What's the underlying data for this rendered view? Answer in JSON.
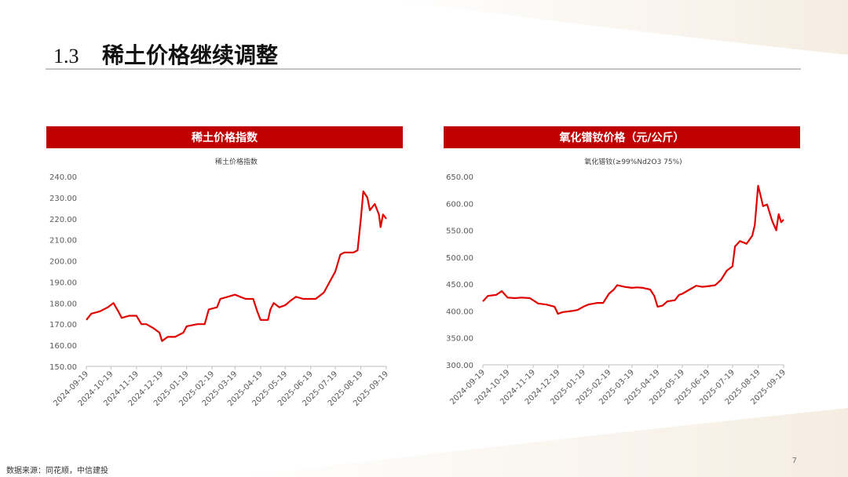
{
  "slide": {
    "section": "1.3",
    "title": "稀土价格继续调整",
    "source": "数据来源：同花顺，中信建投",
    "page": "7"
  },
  "chart_data": [
    {
      "type": "line",
      "header": "稀土价格指数",
      "title": "稀土价格指数",
      "color": "#e00000",
      "x": [
        "2024-09-19",
        "2024-09-25",
        "2024-10-05",
        "2024-10-15",
        "2024-10-22",
        "2024-10-28",
        "2024-11-01",
        "2024-11-10",
        "2024-11-19",
        "2024-11-25",
        "2024-12-01",
        "2024-12-10",
        "2024-12-17",
        "2024-12-20",
        "2024-12-27",
        "2025-01-05",
        "2025-01-15",
        "2025-01-19",
        "2025-02-01",
        "2025-02-10",
        "2025-02-15",
        "2025-02-25",
        "2025-03-01",
        "2025-03-10",
        "2025-03-19",
        "2025-03-25",
        "2025-04-01",
        "2025-04-10",
        "2025-04-15",
        "2025-04-19",
        "2025-04-28",
        "2025-05-01",
        "2025-05-05",
        "2025-05-12",
        "2025-05-19",
        "2025-05-25",
        "2025-06-01",
        "2025-06-10",
        "2025-06-19",
        "2025-06-25",
        "2025-07-05",
        "2025-07-12",
        "2025-07-19",
        "2025-07-25",
        "2025-07-30",
        "2025-08-10",
        "2025-08-15",
        "2025-08-19",
        "2025-08-22",
        "2025-08-27",
        "2025-08-30",
        "2025-09-05",
        "2025-09-10",
        "2025-09-12",
        "2025-09-15",
        "2025-09-19"
      ],
      "values": [
        172,
        175,
        176,
        178,
        180,
        176,
        173,
        174,
        174,
        170,
        170,
        168,
        166,
        162,
        164,
        164,
        166,
        169,
        170,
        170,
        177,
        178,
        182,
        183,
        184,
        183,
        182,
        182,
        176,
        172,
        172,
        177,
        180,
        178,
        179,
        181,
        183,
        182,
        182,
        182,
        185,
        190,
        195,
        203,
        204,
        204,
        205,
        220,
        233,
        230,
        224,
        227,
        222,
        216,
        222,
        220
      ],
      "xlim": [
        "2024-09-19",
        "2025-09-19"
      ],
      "xticks": [
        "2024-09-19",
        "2024-10-19",
        "2024-11-19",
        "2024-12-19",
        "2025-01-19",
        "2025-02-19",
        "2025-03-19",
        "2025-04-19",
        "2025-05-19",
        "2025-06-19",
        "2025-07-19",
        "2025-08-19",
        "2025-09-19"
      ],
      "ylim": [
        150,
        240
      ],
      "yticks": [
        {
          "value": 150,
          "label": "150.00"
        },
        {
          "value": 160,
          "label": "160.00"
        },
        {
          "value": 170,
          "label": "170.00"
        },
        {
          "value": 180,
          "label": "180.00"
        },
        {
          "value": 190,
          "label": "190.00"
        },
        {
          "value": 200,
          "label": "200.00"
        },
        {
          "value": 210,
          "label": "210.00"
        },
        {
          "value": 220,
          "label": "220.00"
        },
        {
          "value": 230,
          "label": "230.00"
        },
        {
          "value": 240,
          "label": "240.00"
        }
      ]
    },
    {
      "type": "line",
      "header": "氧化镨钕价格（元/公斤）",
      "title": "氧化镨钕(≥99%Nd2O3 75%)",
      "color": "#e00000",
      "x": [
        "2024-09-19",
        "2024-09-25",
        "2024-10-05",
        "2024-10-12",
        "2024-10-19",
        "2024-10-28",
        "2024-11-05",
        "2024-11-15",
        "2024-11-19",
        "2024-11-25",
        "2024-12-05",
        "2024-12-15",
        "2024-12-19",
        "2024-12-25",
        "2025-01-05",
        "2025-01-12",
        "2025-01-19",
        "2025-01-25",
        "2025-02-05",
        "2025-02-12",
        "2025-02-19",
        "2025-02-25",
        "2025-03-01",
        "2025-03-10",
        "2025-03-19",
        "2025-03-25",
        "2025-04-01",
        "2025-04-10",
        "2025-04-15",
        "2025-04-19",
        "2025-04-25",
        "2025-05-01",
        "2025-05-10",
        "2025-05-15",
        "2025-05-19",
        "2025-05-28",
        "2025-06-05",
        "2025-06-12",
        "2025-06-19",
        "2025-06-28",
        "2025-07-05",
        "2025-07-12",
        "2025-07-19",
        "2025-07-22",
        "2025-07-28",
        "2025-08-05",
        "2025-08-12",
        "2025-08-15",
        "2025-08-19",
        "2025-08-22",
        "2025-08-25",
        "2025-08-30",
        "2025-09-05",
        "2025-09-10",
        "2025-09-13",
        "2025-09-16",
        "2025-09-19"
      ],
      "values": [
        418,
        428,
        430,
        437,
        425,
        424,
        425,
        424,
        420,
        414,
        412,
        408,
        395,
        398,
        400,
        402,
        408,
        412,
        415,
        415,
        432,
        440,
        448,
        445,
        443,
        444,
        443,
        440,
        428,
        408,
        410,
        418,
        420,
        430,
        432,
        440,
        447,
        445,
        446,
        448,
        458,
        475,
        483,
        520,
        530,
        525,
        540,
        560,
        633,
        615,
        595,
        598,
        568,
        550,
        580,
        565,
        570
      ],
      "xlim": [
        "2024-09-19",
        "2025-09-19"
      ],
      "xticks": [
        "2024-09-19",
        "2024-10-19",
        "2024-11-19",
        "2024-12-19",
        "2025-01-19",
        "2025-02-19",
        "2025-03-19",
        "2025-04-19",
        "2025-05-19",
        "2025-06-19",
        "2025-07-19",
        "2025-08-19",
        "2025-09-19"
      ],
      "ylim": [
        300,
        650
      ],
      "yticks": [
        {
          "value": 300,
          "label": "300.00"
        },
        {
          "value": 350,
          "label": "350.00"
        },
        {
          "value": 400,
          "label": "400.00"
        },
        {
          "value": 450,
          "label": "450.00"
        },
        {
          "value": 500,
          "label": "500.00"
        },
        {
          "value": 550,
          "label": "550.00"
        },
        {
          "value": 600,
          "label": "600.00"
        },
        {
          "value": 650,
          "label": "650.00"
        }
      ]
    }
  ]
}
